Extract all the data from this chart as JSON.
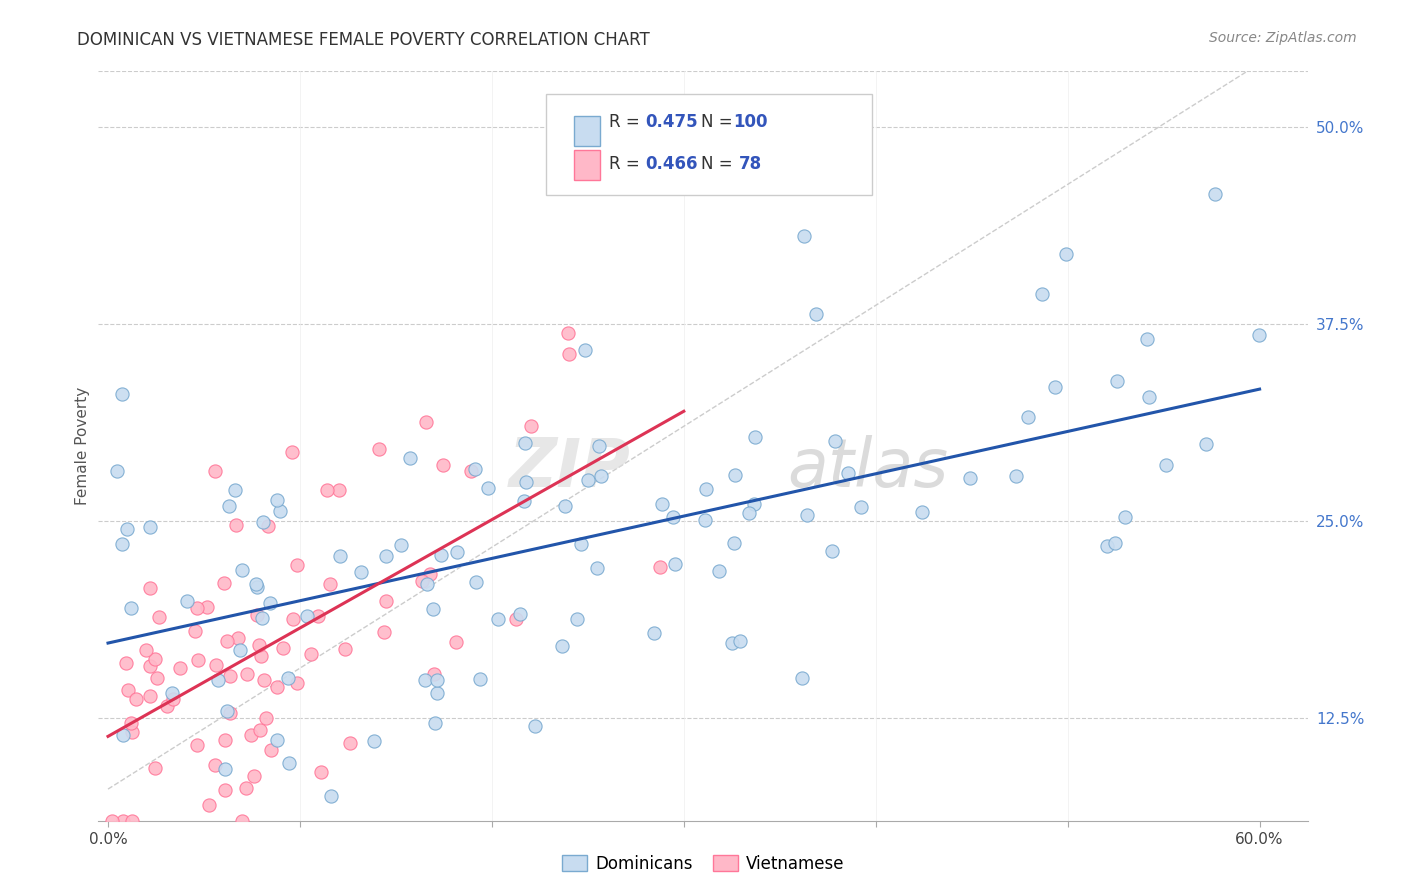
{
  "title": "DOMINICAN VS VIETNAMESE FEMALE POVERTY CORRELATION CHART",
  "source": "Source: ZipAtlas.com",
  "xlabel_ticks_edge": [
    "0.0%",
    "60.0%"
  ],
  "xlabel_vals_edge": [
    0.0,
    0.6
  ],
  "xlabel_tick_positions": [
    0.0,
    0.1,
    0.2,
    0.3,
    0.4,
    0.5,
    0.6
  ],
  "ylabel_ticks": [
    "12.5%",
    "25.0%",
    "37.5%",
    "50.0%"
  ],
  "ylabel_vals": [
    0.125,
    0.25,
    0.375,
    0.5
  ],
  "xlim": [
    -0.005,
    0.625
  ],
  "ylim": [
    0.06,
    0.535
  ],
  "dominican_R": 0.475,
  "dominican_N": 100,
  "vietnamese_R": 0.466,
  "vietnamese_N": 78,
  "blue_scatter_face": "#C8DCF0",
  "blue_scatter_edge": "#7AAAD0",
  "pink_scatter_face": "#FFB8C8",
  "pink_scatter_edge": "#FF7799",
  "regression_blue": "#2255AA",
  "regression_pink": "#DD3355",
  "regression_gray": "#CCCCCC",
  "title_fontsize": 12,
  "source_fontsize": 10,
  "tick_fontsize": 11,
  "legend_fontsize": 12,
  "ylabel": "Female Poverty",
  "ylabel_fontsize": 11,
  "blue_line_start_y": 0.19,
  "blue_line_end_y": 0.335,
  "pink_line_start_x": 0.0,
  "pink_line_start_y": 0.115,
  "pink_line_end_x": 0.295,
  "pink_line_end_y": 0.335
}
